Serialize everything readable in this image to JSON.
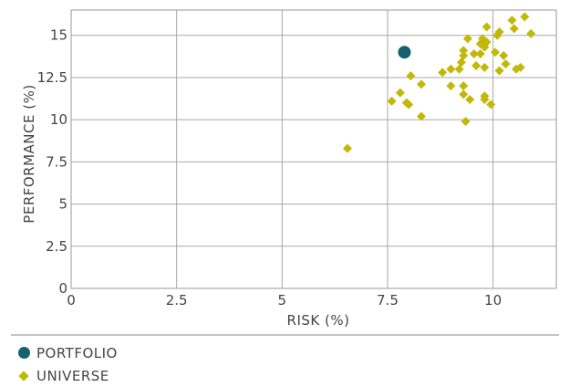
{
  "chart_data": {
    "type": "scatter",
    "xlabel": "RISK (%)",
    "ylabel": "PERFORMANCE (%)",
    "xlim": [
      0,
      11.5
    ],
    "ylim": [
      0,
      16.5
    ],
    "x_ticks": [
      "0",
      "2.5",
      "5",
      "7.5",
      "10"
    ],
    "y_ticks": [
      "0",
      "2.5",
      "5",
      "7.5",
      "10",
      "12.5",
      "15"
    ],
    "x_tick_values": [
      0,
      2.5,
      5,
      7.5,
      10
    ],
    "y_tick_values": [
      0,
      2.5,
      5,
      7.5,
      10,
      12.5,
      15
    ],
    "grid": true,
    "legend_position": "bottom-left",
    "series": [
      {
        "name": "PORTFOLIO",
        "marker": "circle",
        "color": "#14606e",
        "points": [
          [
            7.9,
            14.0
          ]
        ]
      },
      {
        "name": "UNIVERSE",
        "marker": "diamond",
        "color": "#c2b80a",
        "points": [
          [
            6.55,
            8.3
          ],
          [
            7.6,
            11.1
          ],
          [
            7.8,
            11.6
          ],
          [
            7.95,
            11.0
          ],
          [
            8.0,
            10.9
          ],
          [
            8.05,
            12.6
          ],
          [
            8.3,
            12.1
          ],
          [
            8.3,
            10.2
          ],
          [
            8.8,
            12.8
          ],
          [
            9.0,
            12.0
          ],
          [
            9.0,
            13.0
          ],
          [
            9.2,
            13.0
          ],
          [
            9.25,
            13.4
          ],
          [
            9.3,
            13.8
          ],
          [
            9.3,
            14.1
          ],
          [
            9.3,
            12.0
          ],
          [
            9.3,
            11.5
          ],
          [
            9.35,
            9.9
          ],
          [
            9.4,
            14.8
          ],
          [
            9.45,
            11.2
          ],
          [
            9.55,
            13.9
          ],
          [
            9.6,
            13.2
          ],
          [
            9.7,
            13.9
          ],
          [
            9.7,
            14.5
          ],
          [
            9.75,
            14.8
          ],
          [
            9.8,
            14.3
          ],
          [
            9.8,
            13.1
          ],
          [
            9.8,
            11.4
          ],
          [
            9.8,
            11.2
          ],
          [
            9.85,
            15.5
          ],
          [
            9.85,
            14.6
          ],
          [
            9.95,
            10.9
          ],
          [
            10.05,
            14.0
          ],
          [
            10.1,
            15.0
          ],
          [
            10.15,
            15.2
          ],
          [
            10.15,
            12.9
          ],
          [
            10.25,
            13.8
          ],
          [
            10.3,
            13.3
          ],
          [
            10.45,
            15.9
          ],
          [
            10.5,
            15.4
          ],
          [
            10.55,
            13.0
          ],
          [
            10.65,
            13.1
          ],
          [
            10.75,
            16.1
          ],
          [
            10.9,
            15.1
          ]
        ]
      }
    ]
  },
  "legend": {
    "items": [
      {
        "label": "PORTFOLIO",
        "color": "#14606e",
        "shape": "circle"
      },
      {
        "label": "UNIVERSE",
        "color": "#c2b80a",
        "shape": "diamond"
      }
    ]
  }
}
